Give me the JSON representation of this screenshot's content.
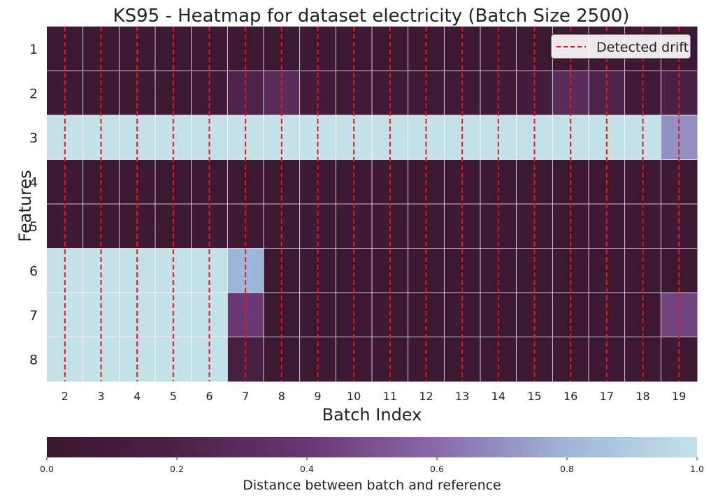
{
  "chart_data": {
    "type": "heatmap",
    "title": "KS95 - Heatmap for dataset electricity (Batch Size 2500)",
    "xlabel": "Batch Index",
    "ylabel": "Features",
    "x_tick_labels": [
      "2",
      "3",
      "4",
      "5",
      "6",
      "7",
      "8",
      "9",
      "10",
      "11",
      "12",
      "13",
      "14",
      "15",
      "16",
      "17",
      "18",
      "19"
    ],
    "y_tick_labels": [
      "1",
      "2",
      "3",
      "4",
      "5",
      "6",
      "7",
      "8"
    ],
    "values": [
      [
        0.02,
        0.02,
        0.02,
        0.02,
        0.02,
        0.02,
        0.02,
        0.02,
        0.02,
        0.02,
        0.02,
        0.02,
        0.02,
        0.02,
        0.02,
        0.02,
        0.02,
        0.02
      ],
      [
        0.03,
        0.03,
        0.03,
        0.03,
        0.05,
        0.22,
        0.3,
        0.08,
        0.05,
        0.05,
        0.05,
        0.05,
        0.05,
        0.1,
        0.3,
        0.22,
        0.05,
        0.18
      ],
      [
        1.0,
        1.0,
        1.0,
        1.0,
        1.0,
        1.0,
        1.0,
        1.0,
        1.0,
        1.0,
        1.0,
        1.0,
        1.0,
        1.0,
        1.0,
        1.0,
        1.0,
        0.7
      ],
      [
        0.02,
        0.02,
        0.02,
        0.02,
        0.02,
        0.02,
        0.02,
        0.02,
        0.02,
        0.02,
        0.02,
        0.02,
        0.02,
        0.02,
        0.02,
        0.02,
        0.02,
        0.02
      ],
      [
        0.04,
        0.04,
        0.04,
        0.04,
        0.04,
        0.04,
        0.04,
        0.04,
        0.04,
        0.04,
        0.04,
        0.04,
        0.04,
        0.04,
        0.04,
        0.04,
        0.04,
        0.04
      ],
      [
        1.0,
        1.0,
        1.0,
        1.0,
        1.0,
        0.8,
        0.02,
        0.02,
        0.02,
        0.02,
        0.02,
        0.02,
        0.02,
        0.02,
        0.02,
        0.02,
        0.02,
        0.02
      ],
      [
        1.0,
        1.0,
        1.0,
        1.0,
        1.0,
        0.4,
        0.02,
        0.02,
        0.02,
        0.02,
        0.02,
        0.02,
        0.02,
        0.02,
        0.02,
        0.02,
        0.02,
        0.45
      ],
      [
        1.0,
        1.0,
        1.0,
        1.0,
        1.0,
        0.15,
        0.02,
        0.02,
        0.02,
        0.02,
        0.02,
        0.02,
        0.02,
        0.02,
        0.02,
        0.02,
        0.02,
        0.02
      ]
    ],
    "drift_lines_at_batch_index": [
      2,
      3,
      4,
      5,
      6,
      7,
      8,
      9,
      10,
      11,
      12,
      13,
      14,
      15,
      16,
      17,
      18,
      19
    ],
    "legend": {
      "label": "Detected drift",
      "placement": "top-right",
      "line_color": "#e8171a"
    },
    "colorbar": {
      "label": "Distance between batch and reference",
      "range": [
        0.0,
        1.0
      ],
      "tick_labels": [
        "0.0",
        "0.2",
        "0.4",
        "0.6",
        "0.8",
        "1.0"
      ],
      "colormap": [
        "#3a1730",
        "#4b2146",
        "#693772",
        "#8a6aab",
        "#9eb6d8",
        "#c4e1e7"
      ]
    }
  }
}
